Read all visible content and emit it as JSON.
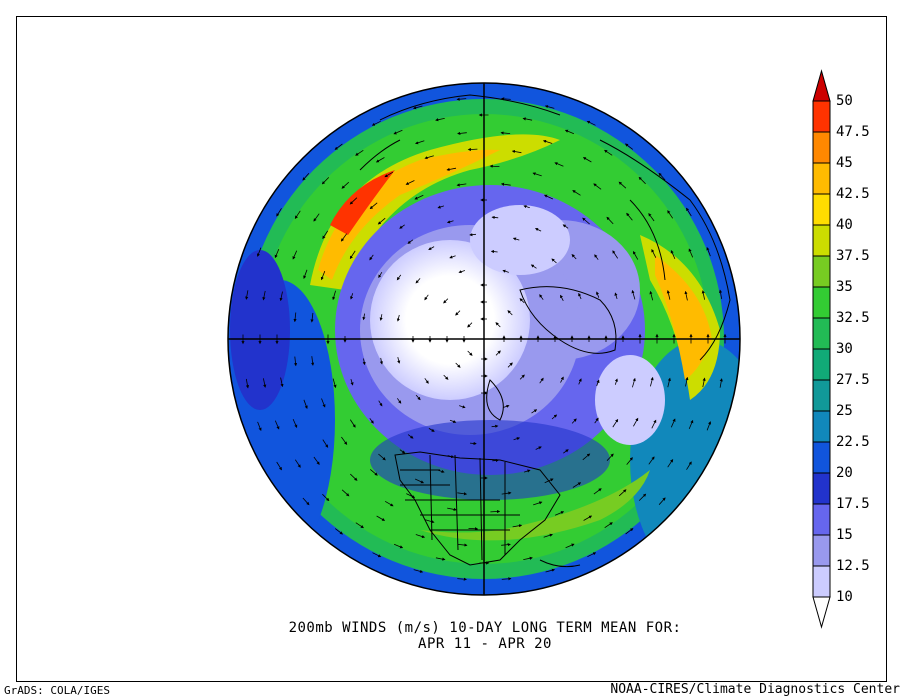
{
  "title": {
    "line1": "200mb WINDS (m/s)   10-DAY LONG TERM MEAN FOR:",
    "line2": "APR 11 - APR 20"
  },
  "footer": {
    "left": "GrADS: COLA/IGES",
    "right": "NOAA-CIRES/Climate Diagnostics Center"
  },
  "colorbar": {
    "units": "m/s",
    "levels": [
      "50",
      "47.5",
      "45",
      "42.5",
      "40",
      "37.5",
      "35",
      "32.5",
      "30",
      "27.5",
      "25",
      "22.5",
      "20",
      "17.5",
      "15",
      "12.5",
      "10"
    ],
    "colors": [
      "#cc0000",
      "#ff3300",
      "#ff8800",
      "#ffbb00",
      "#ffdd00",
      "#ccdd00",
      "#77cc22",
      "#33cc33",
      "#22bb55",
      "#11aa77",
      "#119999",
      "#1188bb",
      "#1155dd",
      "#2233cc",
      "#6666ee",
      "#9999ee",
      "#ccccff",
      "#ffffff"
    ]
  },
  "map": {
    "projection": "north-polar-stereographic",
    "field": "200mb wind speed with wind vectors"
  }
}
